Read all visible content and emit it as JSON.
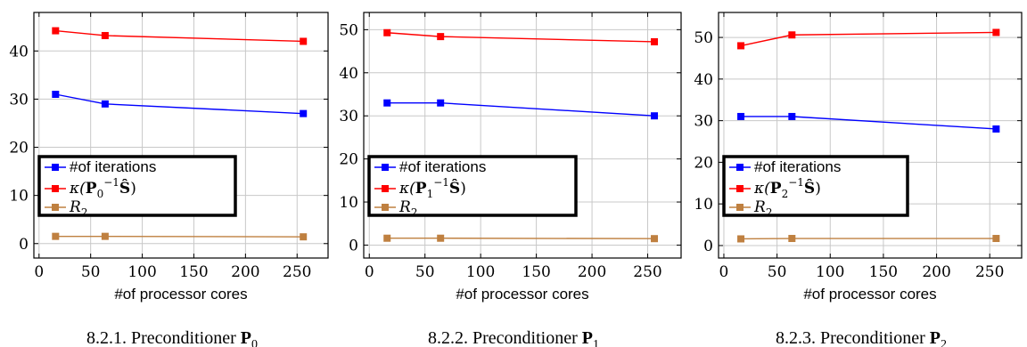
{
  "chart_data": [
    {
      "type": "line",
      "caption": "8.2.1. Preconditioner P0",
      "caption_text": "8.2.1. Preconditioner ",
      "caption_symbol": "P",
      "caption_sub": "0",
      "xlabel": "#of processor cores",
      "xlim": [
        -5,
        280
      ],
      "ylim": [
        -3,
        48
      ],
      "xticks": [
        0,
        50,
        100,
        150,
        200,
        250
      ],
      "yticks": [
        0,
        10,
        20,
        30,
        40
      ],
      "grid": true,
      "legend_position": "left",
      "x": [
        16,
        64,
        256
      ],
      "series": [
        {
          "name": "#of iterations",
          "color": "#0000ff",
          "values": [
            31,
            29,
            27
          ]
        },
        {
          "name": "κ(P0−1Ŝ)",
          "color": "#ff0000",
          "values": [
            44.2,
            43.2,
            42
          ]
        },
        {
          "name": "R2",
          "color": "#bf8040",
          "values": [
            1.5,
            1.5,
            1.4
          ]
        }
      ],
      "legend": {
        "iterations": "#of iterations",
        "kappa_prefix": "κ(",
        "kappa_P": "P",
        "kappa_sub": "0",
        "kappa_sup": "−1",
        "kappa_S": "Ŝ",
        "kappa_suffix": ")",
        "r_main": "R",
        "r_sub": "2"
      }
    },
    {
      "type": "line",
      "caption": "8.2.2. Preconditioner P1",
      "caption_text": "8.2.2. Preconditioner ",
      "caption_symbol": "P",
      "caption_sub": "1",
      "xlabel": "#of processor cores",
      "xlim": [
        -5,
        280
      ],
      "ylim": [
        -3,
        54
      ],
      "xticks": [
        0,
        50,
        100,
        150,
        200,
        250
      ],
      "yticks": [
        0,
        10,
        20,
        30,
        40,
        50
      ],
      "grid": true,
      "legend_position": "left",
      "x": [
        16,
        64,
        256
      ],
      "series": [
        {
          "name": "#of iterations",
          "color": "#0000ff",
          "values": [
            33,
            33,
            30
          ]
        },
        {
          "name": "κ(P1−1Ŝ)",
          "color": "#ff0000",
          "values": [
            49.3,
            48.4,
            47.2
          ]
        },
        {
          "name": "R2",
          "color": "#bf8040",
          "values": [
            1.6,
            1.6,
            1.5
          ]
        }
      ],
      "legend": {
        "iterations": "#of iterations",
        "kappa_prefix": "κ(",
        "kappa_P": "P",
        "kappa_sub": "1",
        "kappa_sup": "−1",
        "kappa_S": "Ŝ",
        "kappa_suffix": ")",
        "r_main": "R",
        "r_sub": "2"
      }
    },
    {
      "type": "line",
      "caption": "8.2.3. Preconditioner P2",
      "caption_text": "8.2.3. Preconditioner ",
      "caption_symbol": "P",
      "caption_sub": "2",
      "xlabel": "#of processor cores",
      "xlim": [
        -5,
        280
      ],
      "ylim": [
        -3,
        56
      ],
      "xticks": [
        0,
        50,
        100,
        150,
        200,
        250
      ],
      "yticks": [
        0,
        10,
        20,
        30,
        40,
        50
      ],
      "grid": true,
      "legend_position": "left",
      "x": [
        16,
        64,
        256
      ],
      "series": [
        {
          "name": "#of iterations",
          "color": "#0000ff",
          "values": [
            31,
            31,
            28
          ]
        },
        {
          "name": "κ(P2−1Ŝ)",
          "color": "#ff0000",
          "values": [
            48,
            50.6,
            51.2
          ]
        },
        {
          "name": "R2",
          "color": "#bf8040",
          "values": [
            1.6,
            1.7,
            1.7
          ]
        }
      ],
      "legend": {
        "iterations": "#of iterations",
        "kappa_prefix": "κ(",
        "kappa_P": "P",
        "kappa_sub": "2",
        "kappa_sup": "−1",
        "kappa_S": "Ŝ",
        "kappa_suffix": ")",
        "r_main": "R",
        "r_sub": "2"
      }
    }
  ]
}
